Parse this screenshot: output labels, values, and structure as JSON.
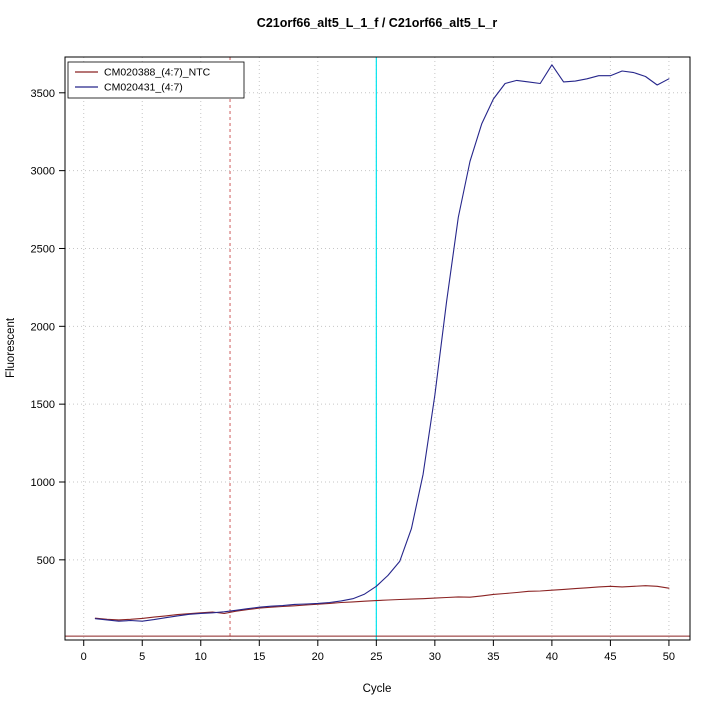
{
  "chart_data": {
    "type": "line",
    "title": "C21orf66_alt5_L_1_f / C21orf66_alt5_L_r",
    "xlabel": "Cycle",
    "ylabel": "Fluorescent",
    "xlim": [
      -1.6,
      51.8
    ],
    "ylim": [
      -15,
      3730
    ],
    "xticks": [
      0,
      5,
      10,
      15,
      20,
      25,
      30,
      35,
      40,
      45,
      50
    ],
    "yticks": [
      500,
      1000,
      1500,
      2000,
      2500,
      3000,
      3500
    ],
    "grid": true,
    "grid_color": "#c6c6c6",
    "legend_position": "top-left",
    "x": [
      1,
      2,
      3,
      4,
      5,
      6,
      7,
      8,
      9,
      10,
      11,
      12,
      13,
      14,
      15,
      16,
      17,
      18,
      19,
      20,
      21,
      22,
      23,
      24,
      25,
      26,
      27,
      28,
      29,
      30,
      31,
      32,
      33,
      34,
      35,
      36,
      37,
      38,
      39,
      40,
      41,
      42,
      43,
      44,
      45,
      46,
      47,
      48,
      49,
      50
    ],
    "series": [
      {
        "name": "CM020388_(4:7)_NTC",
        "color": "#8b2323",
        "values": [
          125,
          118,
          114,
          118,
          124,
          132,
          140,
          148,
          154,
          160,
          165,
          155,
          170,
          180,
          190,
          196,
          200,
          205,
          210,
          215,
          220,
          226,
          230,
          234,
          238,
          242,
          245,
          248,
          250,
          254,
          258,
          262,
          260,
          268,
          278,
          284,
          290,
          298,
          300,
          305,
          310,
          315,
          320,
          326,
          330,
          326,
          330,
          334,
          330,
          318
        ]
      },
      {
        "name": "CM020431_(4:7)",
        "color": "#26268b",
        "values": [
          122,
          114,
          106,
          110,
          106,
          116,
          128,
          140,
          150,
          156,
          160,
          166,
          176,
          186,
          196,
          202,
          206,
          214,
          216,
          220,
          226,
          236,
          250,
          280,
          330,
          400,
          490,
          700,
          1050,
          1560,
          2160,
          2700,
          3060,
          3300,
          3460,
          3560,
          3580,
          3570,
          3560,
          3680,
          3570,
          3575,
          3590,
          3610,
          3610,
          3640,
          3630,
          3605,
          3550,
          3590
        ]
      }
    ],
    "annotations": {
      "vline_dashed": {
        "x": 12.5,
        "color": "#cd5c5c",
        "style": "dashed"
      },
      "vline_solid": {
        "x": 25,
        "color": "#00e5ee",
        "style": "solid"
      },
      "hline_threshold": {
        "y": 10,
        "color": "#8b2323",
        "style": "solid"
      }
    }
  }
}
